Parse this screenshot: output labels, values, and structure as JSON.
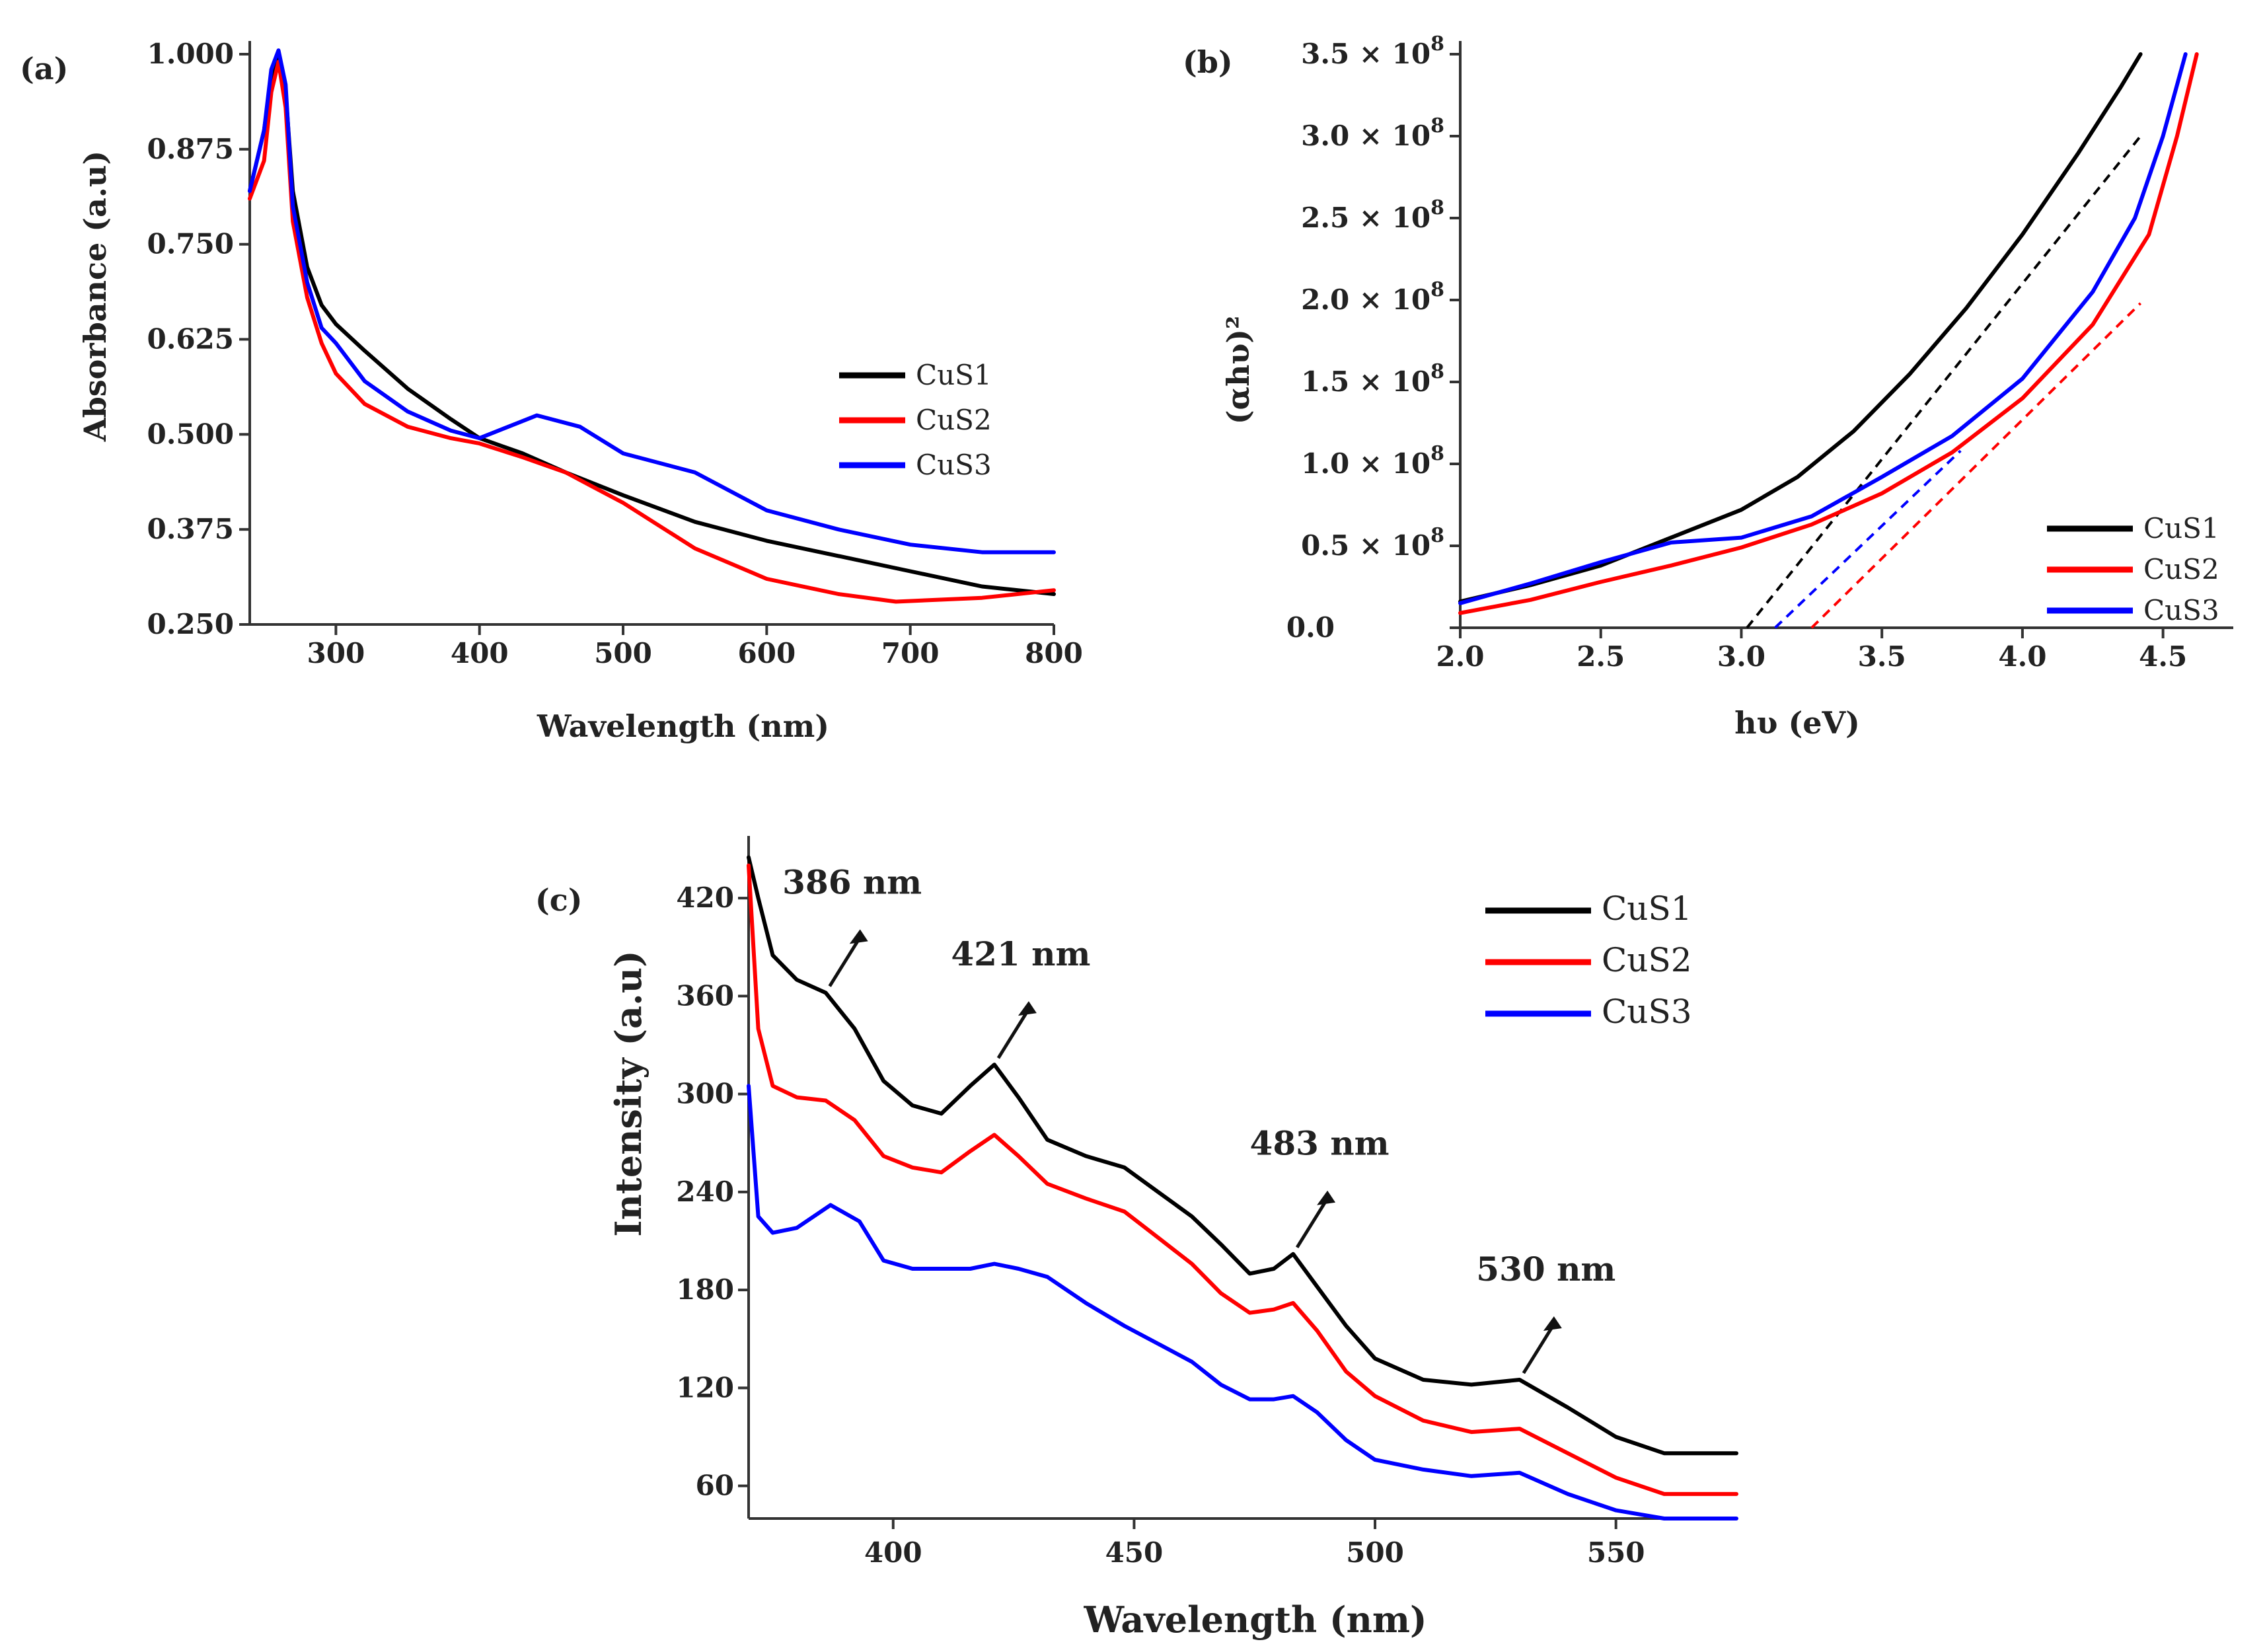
{
  "chart_data": [
    {
      "panel": "(a)",
      "type": "line",
      "xlabel": "Wavelength (nm)",
      "ylabel": "Absorbance (a.u)",
      "xlim": [
        240,
        800
      ],
      "ylim": [
        0.25,
        1.0
      ],
      "xticks": [
        300,
        400,
        500,
        600,
        700,
        800
      ],
      "xtick_labels": [
        "300",
        "400",
        "500",
        "600",
        "700",
        "800"
      ],
      "yticks": [
        0.25,
        0.375,
        0.5,
        0.625,
        0.75,
        0.875,
        1.0
      ],
      "ytick_labels": [
        "0.250",
        "0.375",
        "0.500",
        "0.625",
        "0.750",
        "0.875",
        "1.000"
      ],
      "legend_position": "center-right",
      "series": [
        {
          "name": "CuS1",
          "color": "#000000",
          "x": [
            240,
            250,
            255,
            260,
            265,
            270,
            280,
            290,
            300,
            320,
            350,
            380,
            400,
            430,
            460,
            500,
            550,
            600,
            650,
            700,
            750,
            800
          ],
          "y": [
            0.82,
            0.9,
            0.97,
            1.0,
            0.95,
            0.82,
            0.72,
            0.67,
            0.645,
            0.61,
            0.56,
            0.52,
            0.495,
            0.475,
            0.45,
            0.42,
            0.385,
            0.36,
            0.34,
            0.32,
            0.3,
            0.29
          ]
        },
        {
          "name": "CuS2",
          "color": "#ff0000",
          "x": [
            240,
            250,
            255,
            260,
            265,
            270,
            280,
            290,
            300,
            320,
            350,
            380,
            400,
            430,
            460,
            500,
            550,
            600,
            650,
            690,
            750,
            800
          ],
          "y": [
            0.81,
            0.86,
            0.95,
            0.99,
            0.93,
            0.78,
            0.68,
            0.62,
            0.58,
            0.54,
            0.51,
            0.495,
            0.488,
            0.47,
            0.45,
            0.41,
            0.35,
            0.31,
            0.29,
            0.28,
            0.285,
            0.295
          ]
        },
        {
          "name": "CuS3",
          "color": "#0000ff",
          "x": [
            240,
            250,
            255,
            260,
            265,
            270,
            280,
            290,
            300,
            320,
            350,
            380,
            400,
            420,
            440,
            470,
            500,
            550,
            600,
            650,
            700,
            750,
            800
          ],
          "y": [
            0.82,
            0.9,
            0.98,
            1.005,
            0.96,
            0.8,
            0.7,
            0.64,
            0.62,
            0.57,
            0.53,
            0.505,
            0.495,
            0.51,
            0.525,
            0.51,
            0.475,
            0.45,
            0.4,
            0.375,
            0.355,
            0.345,
            0.345
          ]
        }
      ]
    },
    {
      "panel": "(b)",
      "type": "line",
      "xlabel": "hυ (eV)",
      "ylabel": "(αhυ)²",
      "xlim": [
        2.0,
        4.75
      ],
      "ylim": [
        0,
        350000000
      ],
      "xticks": [
        2.0,
        2.5,
        3.0,
        3.5,
        4.0,
        4.5
      ],
      "xtick_labels": [
        "2.0",
        "2.5",
        "3.0",
        "3.5",
        "4.0",
        "4.5"
      ],
      "yticks": [
        0,
        50000000,
        100000000,
        150000000,
        200000000,
        250000000,
        300000000,
        350000000
      ],
      "ytick_mantissas": [
        "0.0",
        "0.5",
        "1.0",
        "1.5",
        "2.0",
        "2.5",
        "3.0",
        "3.5"
      ],
      "ytick_suffix": "× 10",
      "ytick_exponent": "8",
      "legend_position": "bottom-right",
      "series": [
        {
          "name": "CuS1",
          "color": "#000000",
          "x": [
            2.0,
            2.25,
            2.5,
            2.75,
            3.0,
            3.2,
            3.4,
            3.6,
            3.8,
            4.0,
            4.2,
            4.35,
            4.42
          ],
          "y": [
            16000000,
            26000000,
            38000000,
            55000000,
            72000000,
            92000000,
            120000000,
            155000000,
            195000000,
            240000000,
            290000000,
            330000000,
            350000000
          ]
        },
        {
          "name": "CuS2",
          "color": "#ff0000",
          "x": [
            2.0,
            2.25,
            2.5,
            2.75,
            3.0,
            3.25,
            3.5,
            3.75,
            4.0,
            4.25,
            4.45,
            4.55,
            4.62
          ],
          "y": [
            9000000,
            17000000,
            28000000,
            38000000,
            49000000,
            63000000,
            82000000,
            107000000,
            140000000,
            185000000,
            240000000,
            300000000,
            350000000
          ]
        },
        {
          "name": "CuS3",
          "color": "#0000ff",
          "x": [
            2.0,
            2.25,
            2.5,
            2.75,
            3.0,
            3.25,
            3.5,
            3.75,
            4.0,
            4.25,
            4.4,
            4.5,
            4.58
          ],
          "y": [
            15000000,
            27000000,
            40000000,
            52000000,
            55000000,
            68000000,
            92000000,
            117000000,
            152000000,
            205000000,
            250000000,
            300000000,
            350000000
          ]
        }
      ],
      "tangent_lines": [
        {
          "name": "CuS1 fit",
          "color": "#000000",
          "x": [
            3.02,
            4.42
          ],
          "y": [
            0,
            300000000
          ]
        },
        {
          "name": "CuS2 fit",
          "color": "#ff0000",
          "x": [
            3.25,
            4.42
          ],
          "y": [
            0,
            198000000
          ]
        },
        {
          "name": "CuS3 fit",
          "color": "#0000ff",
          "x": [
            3.12,
            3.78
          ],
          "y": [
            0,
            108000000
          ]
        }
      ]
    },
    {
      "panel": "(c)",
      "type": "line",
      "xlabel": "Wavelength (nm)",
      "ylabel": "Intensity (a.u)",
      "xlim": [
        370,
        575
      ],
      "ylim": [
        40,
        450
      ],
      "xticks": [
        400,
        450,
        500,
        550
      ],
      "xtick_labels": [
        "400",
        "450",
        "500",
        "550"
      ],
      "yticks": [
        60,
        120,
        180,
        240,
        300,
        360,
        420
      ],
      "ytick_labels": [
        "60",
        "120",
        "180",
        "240",
        "300",
        "360",
        "420"
      ],
      "legend_position": "top-right",
      "series": [
        {
          "name": "CuS1",
          "color": "#000000",
          "x": [
            370,
            372,
            375,
            380,
            386,
            392,
            398,
            404,
            410,
            416,
            421,
            426,
            432,
            440,
            448,
            455,
            462,
            468,
            474,
            479,
            483,
            488,
            494,
            500,
            510,
            520,
            530,
            540,
            550,
            560,
            575
          ],
          "y": [
            445,
            420,
            385,
            370,
            362,
            340,
            308,
            293,
            288,
            305,
            318,
            298,
            272,
            262,
            255,
            240,
            225,
            208,
            190,
            193,
            202,
            182,
            158,
            138,
            125,
            122,
            125,
            108,
            90,
            80,
            80
          ]
        },
        {
          "name": "CuS2",
          "color": "#ff0000",
          "x": [
            370,
            372,
            375,
            380,
            386,
            392,
            398,
            404,
            410,
            416,
            421,
            426,
            432,
            440,
            448,
            455,
            462,
            468,
            474,
            479,
            483,
            488,
            494,
            500,
            510,
            520,
            530,
            540,
            550,
            560,
            575
          ],
          "y": [
            440,
            340,
            305,
            298,
            296,
            284,
            262,
            255,
            252,
            265,
            275,
            262,
            245,
            236,
            228,
            212,
            196,
            178,
            166,
            168,
            172,
            155,
            130,
            115,
            100,
            93,
            95,
            80,
            65,
            55,
            55
          ]
        },
        {
          "name": "CuS3",
          "color": "#0000ff",
          "x": [
            370,
            372,
            375,
            380,
            387,
            393,
            398,
            404,
            410,
            416,
            421,
            426,
            432,
            440,
            448,
            455,
            462,
            468,
            474,
            479,
            483,
            488,
            494,
            500,
            510,
            520,
            530,
            540,
            550,
            560,
            575
          ],
          "y": [
            305,
            225,
            215,
            218,
            232,
            222,
            198,
            193,
            193,
            193,
            196,
            193,
            188,
            172,
            158,
            147,
            136,
            122,
            113,
            113,
            115,
            105,
            88,
            76,
            70,
            66,
            68,
            55,
            45,
            40,
            40
          ]
        }
      ],
      "annotations": [
        {
          "text": "386 nm",
          "x": 386
        },
        {
          "text": "421 nm",
          "x": 421
        },
        {
          "text": "483 nm",
          "x": 483
        },
        {
          "text": "530 nm",
          "x": 530
        }
      ]
    }
  ]
}
